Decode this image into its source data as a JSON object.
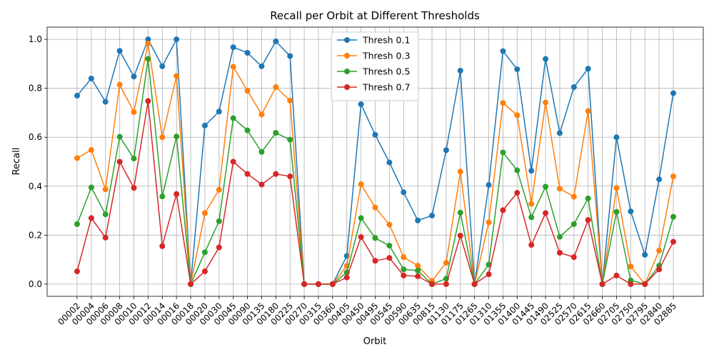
{
  "chart_data": {
    "type": "line",
    "title": "Recall per Orbit at Different Thresholds",
    "xlabel": "Orbit",
    "ylabel": "Recall",
    "ylim": [
      -0.05,
      1.05
    ],
    "yticks": [
      "0.0",
      "0.2",
      "0.4",
      "0.6",
      "0.8",
      "1.0"
    ],
    "grid": true,
    "legend_position": "top-center",
    "categories": [
      "00002",
      "00004",
      "00006",
      "00008",
      "00010",
      "00012",
      "00014",
      "00016",
      "00018",
      "00020",
      "00030",
      "00045",
      "00090",
      "00135",
      "00180",
      "00225",
      "00270",
      "00315",
      "00360",
      "00405",
      "00450",
      "00495",
      "00545",
      "00590",
      "00635",
      "00815",
      "01130",
      "01175",
      "01265",
      "01310",
      "01355",
      "01400",
      "01445",
      "01490",
      "02525",
      "02570",
      "02615",
      "02660",
      "02705",
      "02750",
      "02795",
      "02840",
      "02885"
    ],
    "series": [
      {
        "name": "Thresh 0.1",
        "color": "#1f77b4",
        "values": [
          0.77,
          0.84,
          0.745,
          0.953,
          0.848,
          1.0,
          0.89,
          1.0,
          0.0,
          0.648,
          0.705,
          0.968,
          0.945,
          0.89,
          0.992,
          0.932,
          0.0,
          0.0,
          0.0,
          0.115,
          0.735,
          0.61,
          0.497,
          0.375,
          0.26,
          0.28,
          0.547,
          0.872,
          0.0,
          0.405,
          0.952,
          0.878,
          0.463,
          0.92,
          0.617,
          0.805,
          0.88,
          0.0,
          0.6,
          0.297,
          0.12,
          0.428,
          0.78
        ]
      },
      {
        "name": "Thresh 0.3",
        "color": "#ff7f0e",
        "values": [
          0.515,
          0.548,
          0.387,
          0.815,
          0.703,
          0.983,
          0.6,
          0.85,
          0.0,
          0.29,
          0.385,
          0.888,
          0.79,
          0.693,
          0.805,
          0.75,
          0.0,
          0.0,
          0.0,
          0.075,
          0.408,
          0.313,
          0.243,
          0.11,
          0.075,
          0.013,
          0.087,
          0.46,
          0.0,
          0.252,
          0.74,
          0.69,
          0.328,
          0.742,
          0.39,
          0.357,
          0.707,
          0.0,
          0.393,
          0.072,
          0.0,
          0.137,
          0.44
        ]
      },
      {
        "name": "Thresh 0.5",
        "color": "#2ca02c",
        "values": [
          0.245,
          0.395,
          0.285,
          0.602,
          0.513,
          0.92,
          0.358,
          0.603,
          0.0,
          0.13,
          0.257,
          0.678,
          0.628,
          0.54,
          0.618,
          0.59,
          0.0,
          0.0,
          0.0,
          0.048,
          0.27,
          0.188,
          0.157,
          0.06,
          0.055,
          0.0,
          0.022,
          0.292,
          0.0,
          0.08,
          0.538,
          0.465,
          0.273,
          0.398,
          0.193,
          0.245,
          0.35,
          0.0,
          0.295,
          0.015,
          0.0,
          0.075,
          0.275
        ]
      },
      {
        "name": "Thresh 0.7",
        "color": "#d62728",
        "values": [
          0.052,
          0.27,
          0.19,
          0.5,
          0.393,
          0.748,
          0.155,
          0.368,
          0.0,
          0.052,
          0.15,
          0.5,
          0.45,
          0.407,
          0.45,
          0.44,
          0.0,
          0.0,
          0.0,
          0.027,
          0.192,
          0.095,
          0.107,
          0.035,
          0.032,
          0.0,
          0.0,
          0.198,
          0.0,
          0.04,
          0.302,
          0.373,
          0.16,
          0.29,
          0.128,
          0.11,
          0.262,
          0.0,
          0.035,
          0.0,
          0.0,
          0.06,
          0.173
        ]
      }
    ]
  }
}
